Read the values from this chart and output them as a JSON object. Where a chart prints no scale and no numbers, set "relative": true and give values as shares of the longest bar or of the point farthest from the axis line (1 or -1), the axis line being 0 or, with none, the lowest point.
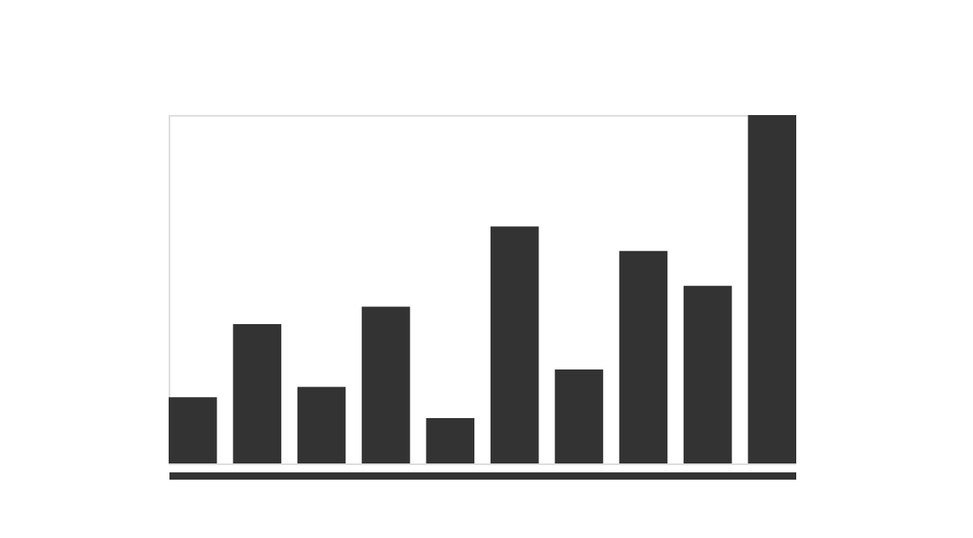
{
  "chart_data": {
    "type": "bar",
    "relative": true,
    "categories": [
      null,
      null,
      null,
      null,
      null,
      null,
      null,
      null,
      null,
      null
    ],
    "values": [
      0.19,
      0.4,
      0.22,
      0.45,
      0.13,
      0.68,
      0.27,
      0.61,
      0.51,
      1.0
    ],
    "color": "#333333"
  }
}
